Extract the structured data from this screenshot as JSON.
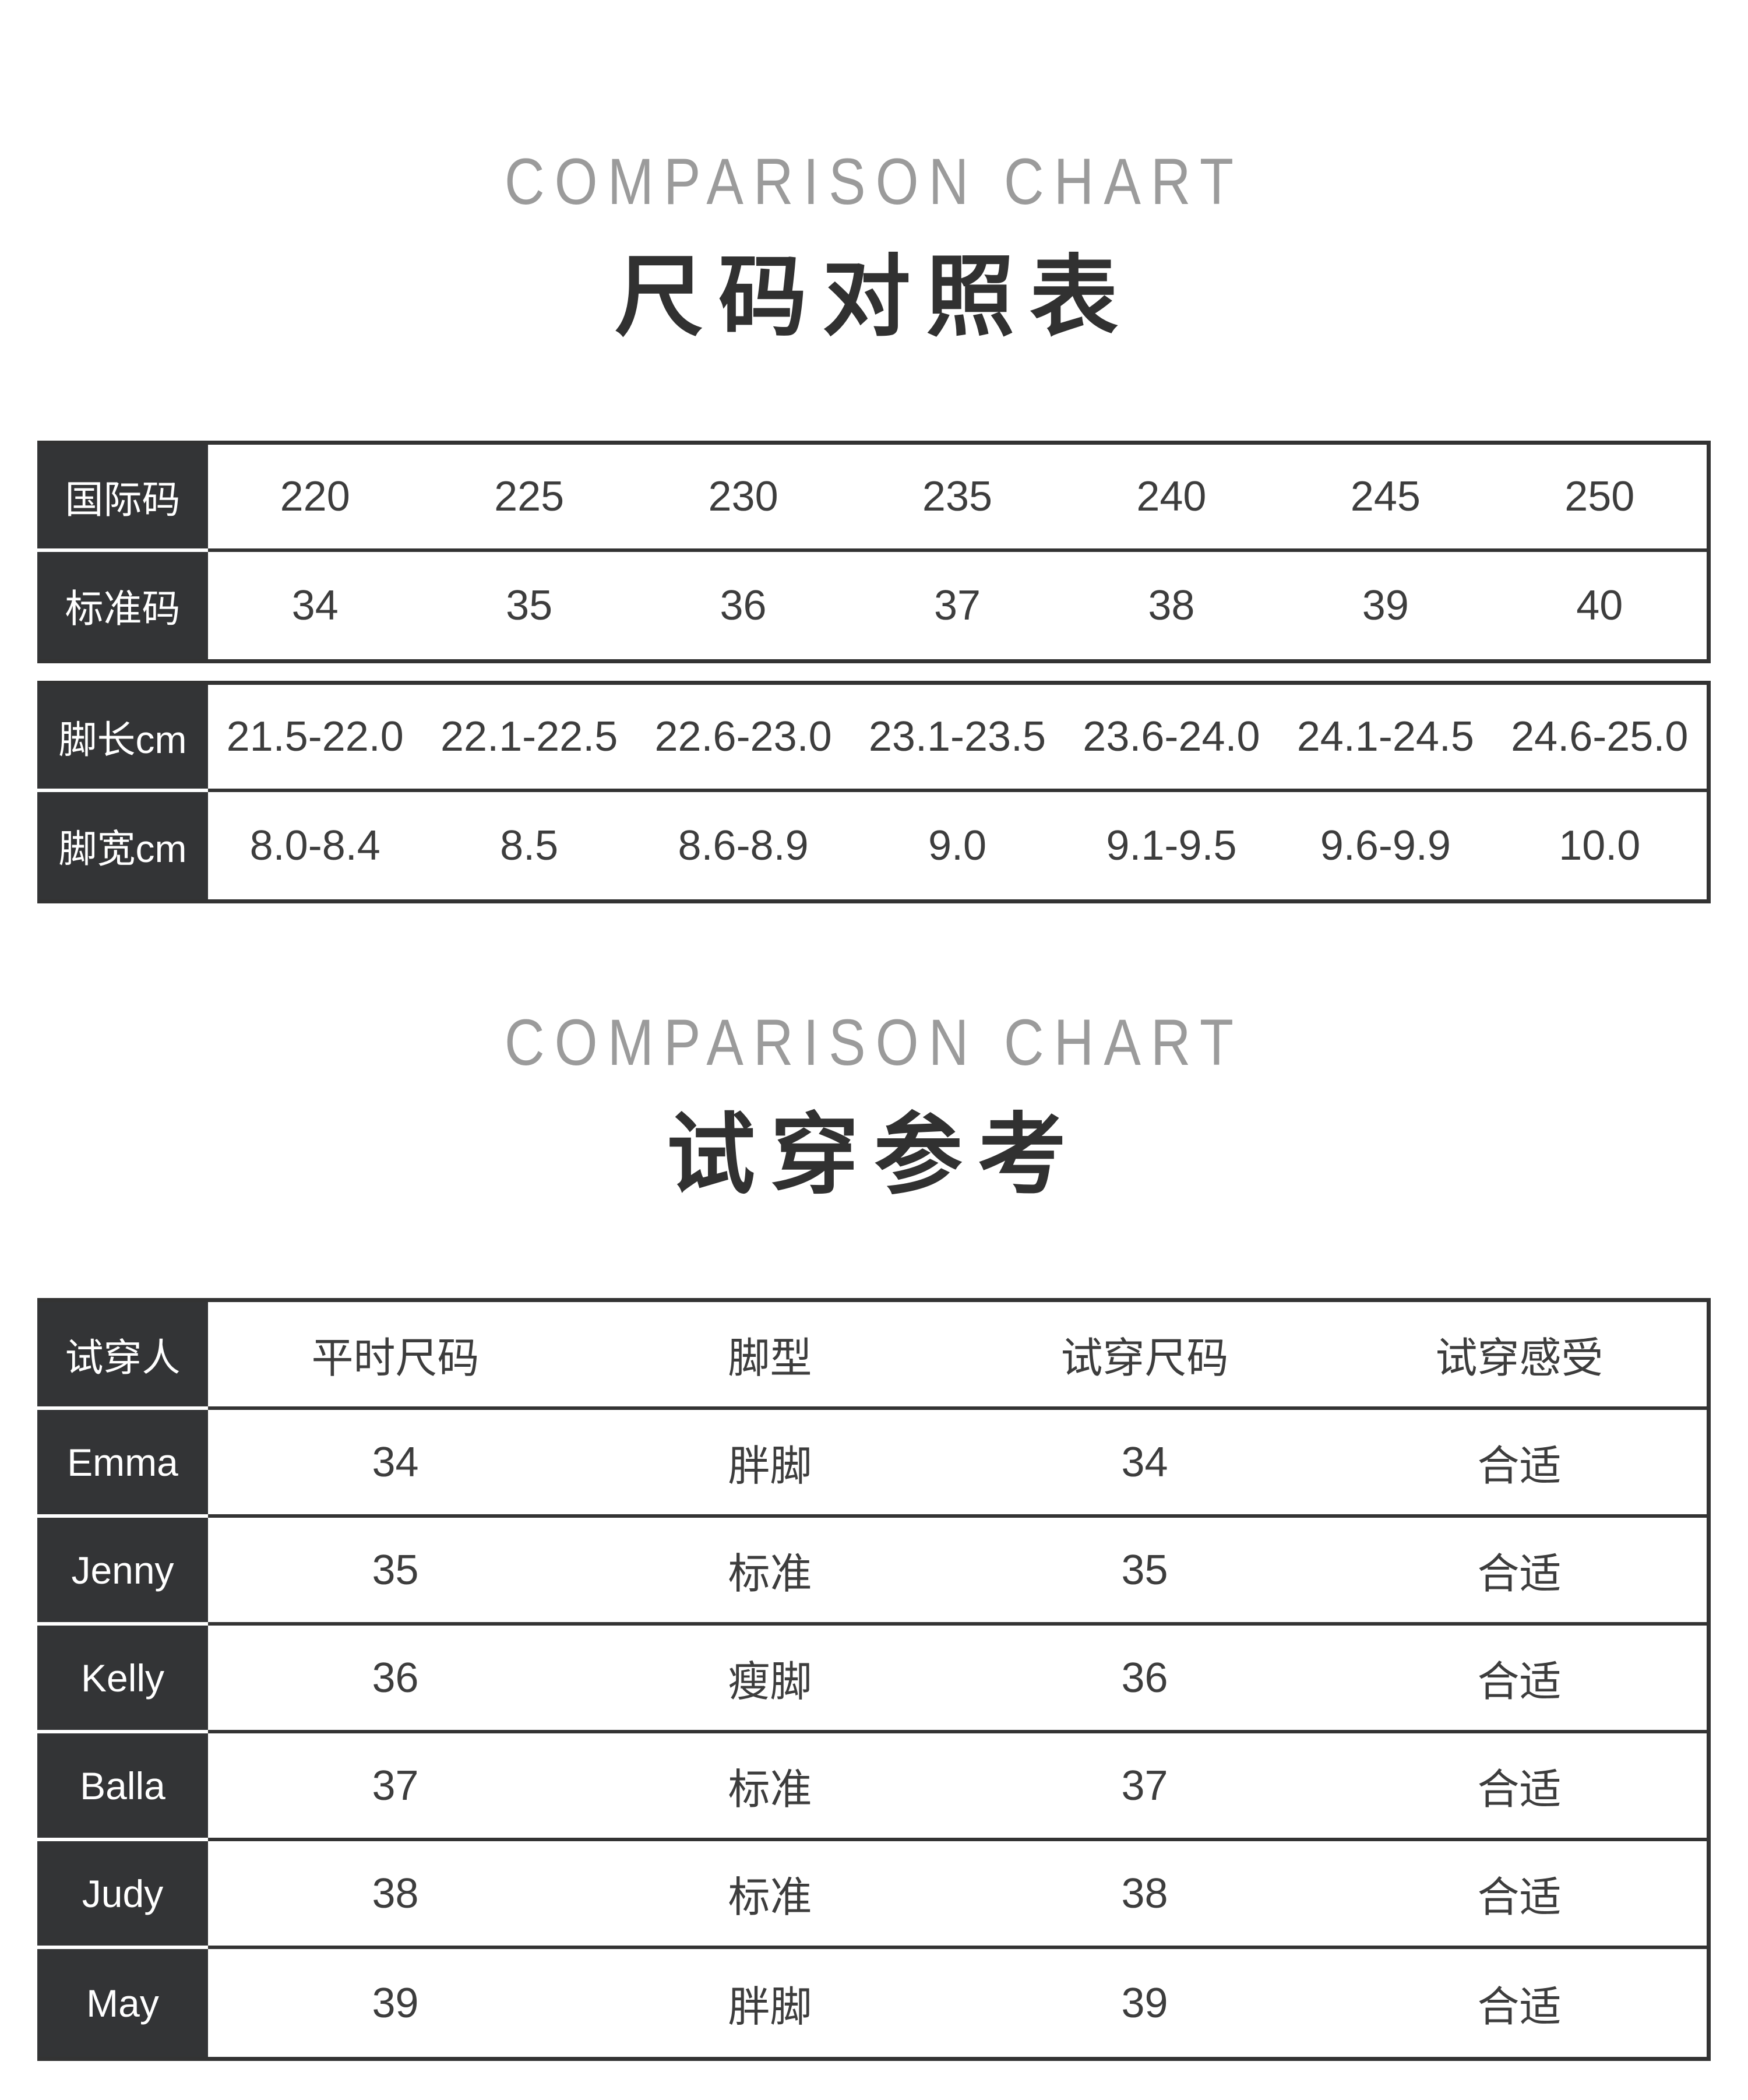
{
  "colors": {
    "dark_cell_bg": "#333436",
    "table_line": "#333333",
    "body_text": "#3d3d3d",
    "title_gray": "#9b9b9b",
    "title_dark": "#313131"
  },
  "section1": {
    "title_en": "COMPARISON CHART",
    "title_zh": "尺码对照表",
    "size_table": {
      "rows": [
        {
          "label": "国际码",
          "values": [
            "220",
            "225",
            "230",
            "235",
            "240",
            "245",
            "250"
          ]
        },
        {
          "label": "标准码",
          "values": [
            "34",
            "35",
            "36",
            "37",
            "38",
            "39",
            "40"
          ]
        }
      ]
    },
    "foot_table": {
      "rows": [
        {
          "label": "脚长cm",
          "values": [
            "21.5-22.0",
            "22.1-22.5",
            "22.6-23.0",
            "23.1-23.5",
            "23.6-24.0",
            "24.1-24.5",
            "24.6-25.0"
          ]
        },
        {
          "label": "脚宽cm",
          "values": [
            "8.0-8.4",
            "8.5",
            "8.6-8.9",
            "9.0",
            "9.1-9.5",
            "9.6-9.9",
            "10.0"
          ]
        }
      ]
    }
  },
  "section2": {
    "title_en": "COMPARISON CHART",
    "title_zh": "试穿参考",
    "fit_table": {
      "header": {
        "label": "试穿人",
        "columns": [
          "平时尺码",
          "脚型",
          "试穿尺码",
          "试穿感受"
        ]
      },
      "rows": [
        {
          "name": "Emma",
          "usual_size": "34",
          "foot_type": "胖脚",
          "tried_size": "34",
          "feeling": "合适"
        },
        {
          "name": "Jenny",
          "usual_size": "35",
          "foot_type": "标准",
          "tried_size": "35",
          "feeling": "合适"
        },
        {
          "name": "Kelly",
          "usual_size": "36",
          "foot_type": "瘦脚",
          "tried_size": "36",
          "feeling": "合适"
        },
        {
          "name": "Balla",
          "usual_size": "37",
          "foot_type": "标准",
          "tried_size": "37",
          "feeling": "合适"
        },
        {
          "name": "Judy",
          "usual_size": "38",
          "foot_type": "标准",
          "tried_size": "38",
          "feeling": "合适"
        },
        {
          "name": "May",
          "usual_size": "39",
          "foot_type": "胖脚",
          "tried_size": "39",
          "feeling": "合适"
        }
      ]
    }
  }
}
